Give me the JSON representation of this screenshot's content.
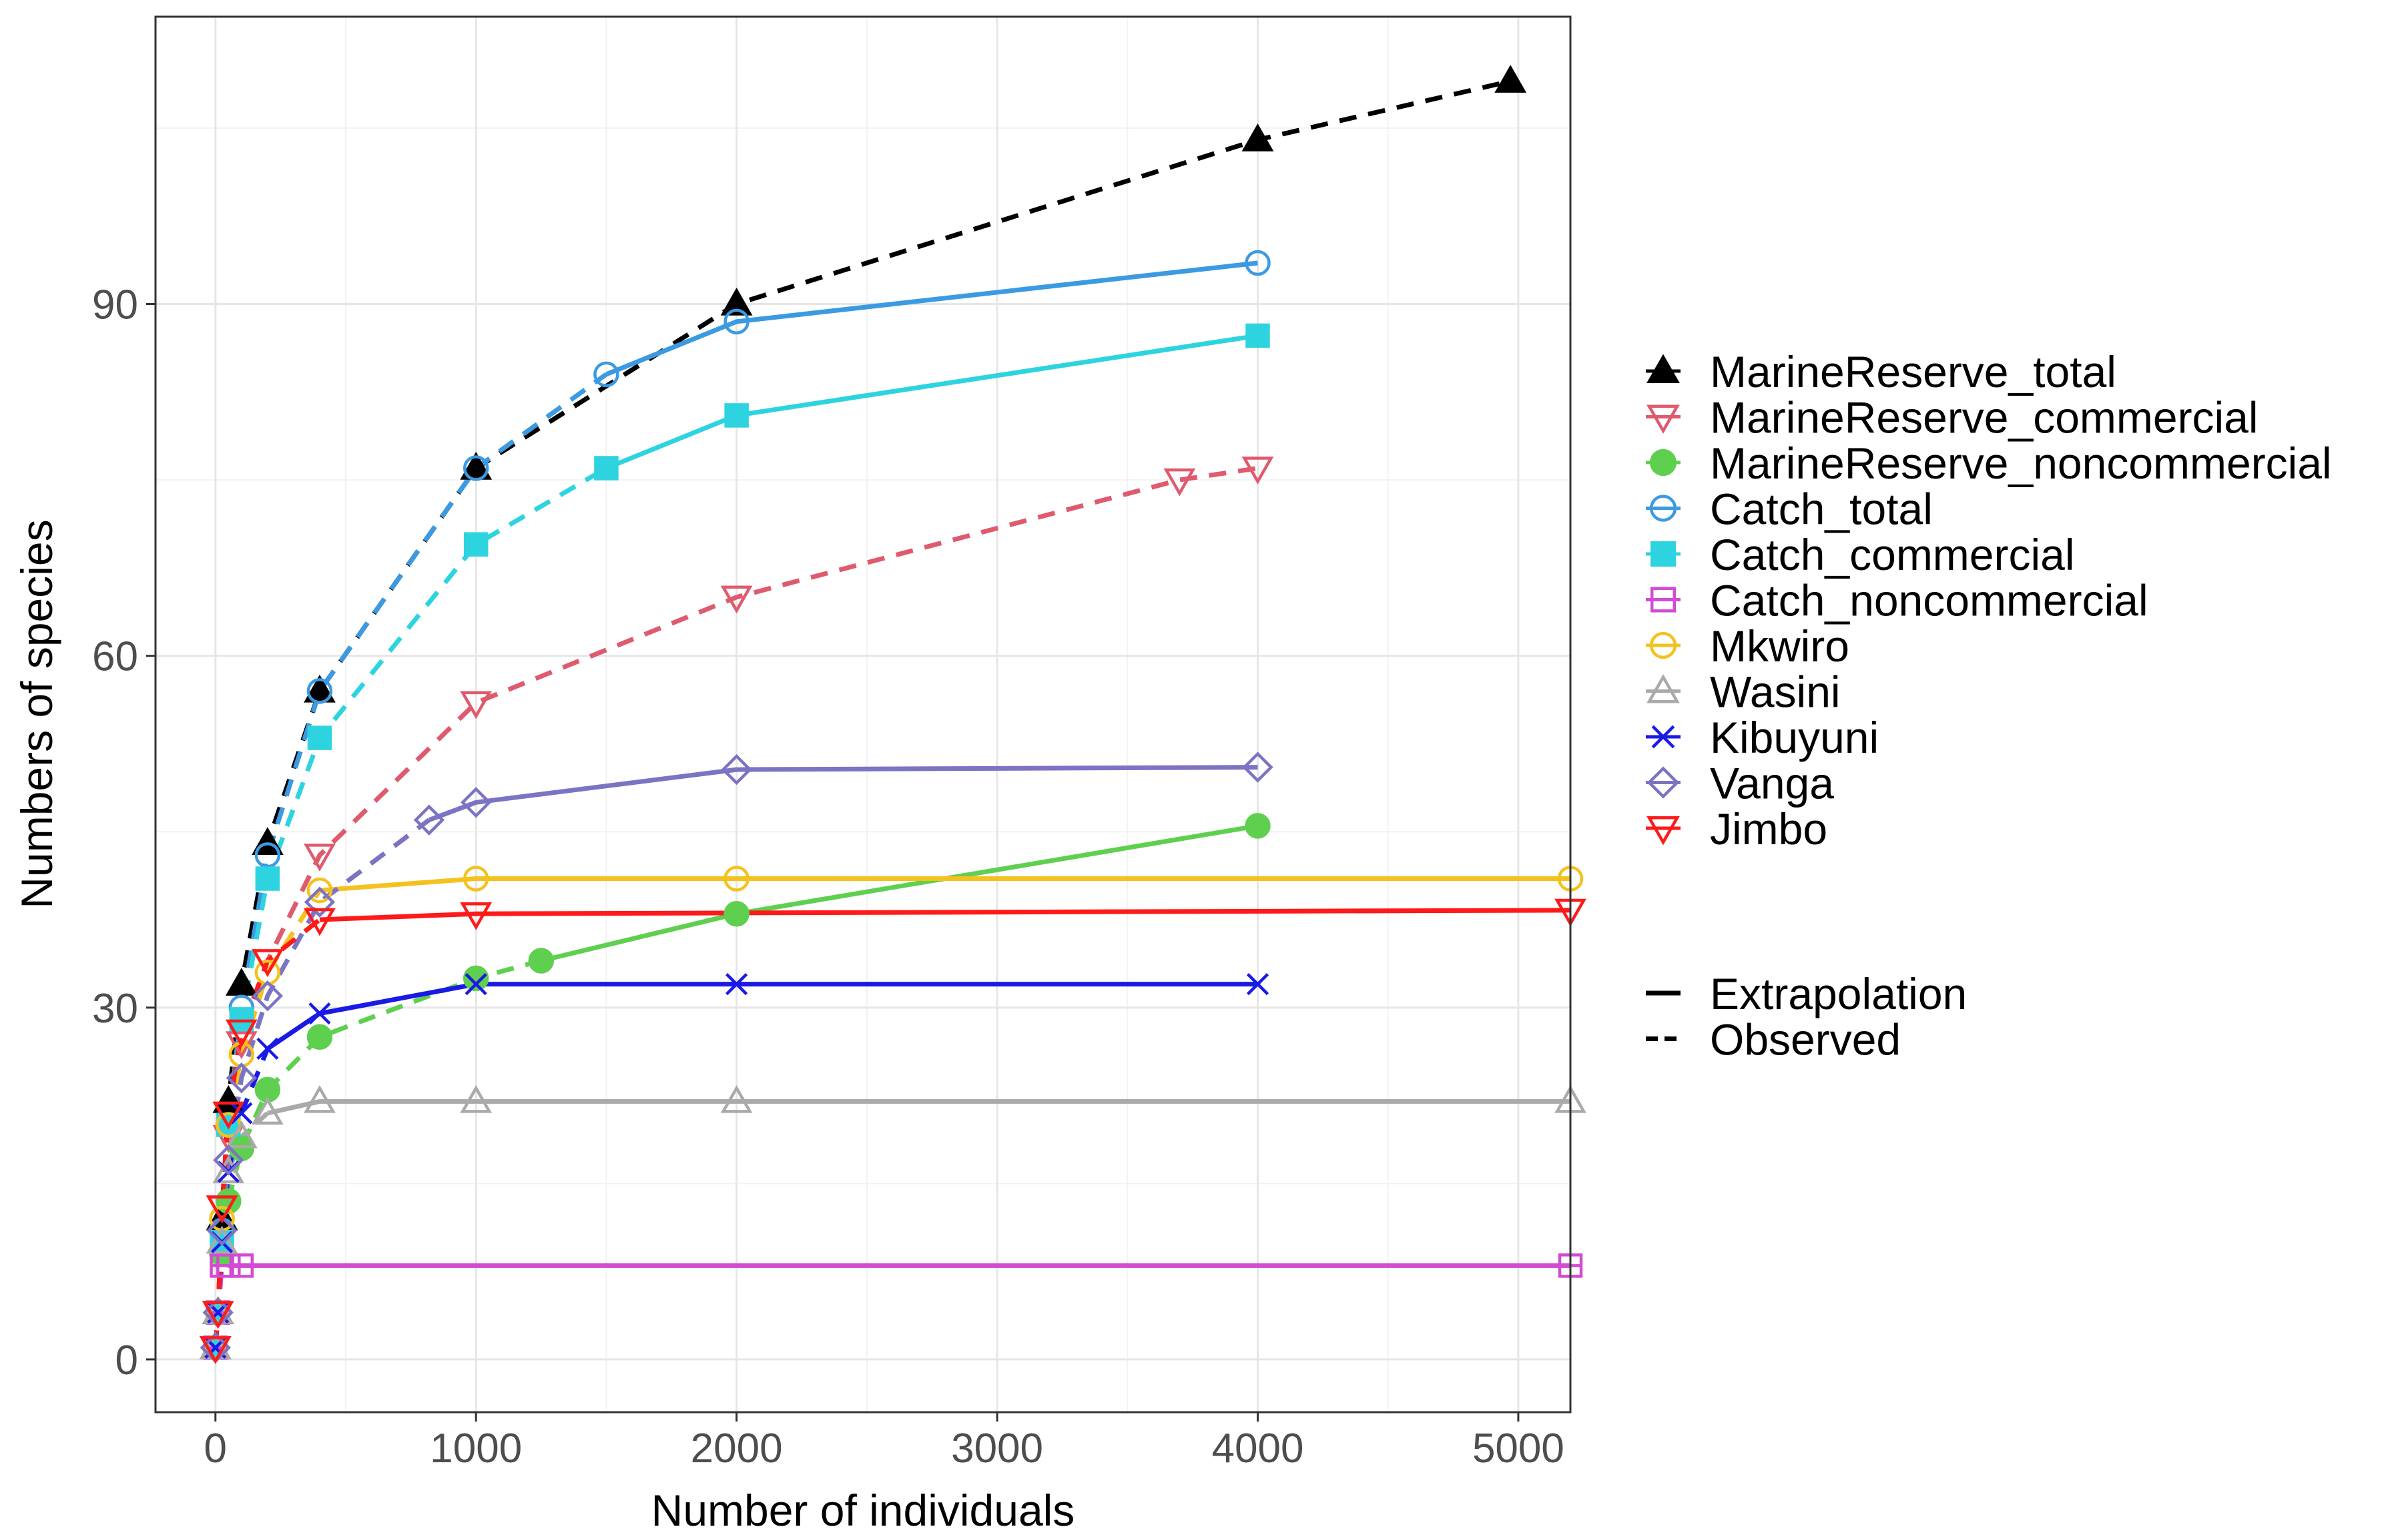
{
  "chart_data": {
    "type": "line",
    "title": "",
    "xlabel": "Number of individuals",
    "ylabel": "Numbers of species",
    "xlim": [
      -230,
      5200
    ],
    "ylim": [
      -4.5,
      114.5
    ],
    "xticks": [
      0,
      1000,
      2000,
      3000,
      4000,
      5000
    ],
    "yticks": [
      0,
      30,
      60,
      90
    ],
    "grid": true,
    "legend_position": "right",
    "linetype_legend": [
      {
        "label": "Extrapolation",
        "dash": "solid"
      },
      {
        "label": "Observed",
        "dash": "dashed"
      }
    ],
    "series": [
      {
        "name": "MarineReserve_total",
        "color": "#000000",
        "marker": "triangle-filled",
        "observed": [
          [
            0,
            1
          ],
          [
            10,
            4
          ],
          [
            25,
            12
          ],
          [
            50,
            22
          ],
          [
            100,
            32
          ],
          [
            200,
            44
          ],
          [
            400,
            57
          ],
          [
            1000,
            76
          ],
          [
            2000,
            90
          ],
          [
            4000,
            104
          ],
          [
            4970,
            109
          ]
        ],
        "extrapolation": []
      },
      {
        "name": "MarineReserve_commercial",
        "color": "#e05a6e",
        "marker": "triangle-down-open",
        "observed": [
          [
            0,
            1
          ],
          [
            10,
            4
          ],
          [
            25,
            13
          ],
          [
            50,
            19
          ],
          [
            100,
            27
          ],
          [
            200,
            34
          ],
          [
            400,
            43
          ],
          [
            1000,
            56
          ],
          [
            2000,
            65
          ],
          [
            3700,
            75
          ],
          [
            4000,
            76
          ]
        ],
        "extrapolation": []
      },
      {
        "name": "MarineReserve_noncommercial",
        "color": "#5fcf4f",
        "marker": "circle-filled",
        "observed": [
          [
            0,
            1
          ],
          [
            10,
            4
          ],
          [
            25,
            9
          ],
          [
            50,
            13.5
          ],
          [
            100,
            18
          ],
          [
            200,
            23
          ],
          [
            400,
            27.5
          ],
          [
            1000,
            32.5
          ],
          [
            1250,
            34
          ]
        ],
        "extrapolation": [
          [
            1250,
            34
          ],
          [
            2000,
            38
          ],
          [
            4000,
            45.5
          ]
        ]
      },
      {
        "name": "Catch_total",
        "color": "#3b9ae1",
        "marker": "circle-open",
        "observed": [
          [
            0,
            1
          ],
          [
            10,
            4
          ],
          [
            25,
            11
          ],
          [
            50,
            20
          ],
          [
            100,
            30
          ],
          [
            200,
            43
          ],
          [
            400,
            57
          ],
          [
            1000,
            76
          ],
          [
            1500,
            84
          ]
        ],
        "extrapolation": [
          [
            1500,
            84
          ],
          [
            2000,
            88.5
          ],
          [
            4000,
            93.5
          ]
        ]
      },
      {
        "name": "Catch_commercial",
        "color": "#2ed3e0",
        "marker": "square-filled",
        "observed": [
          [
            0,
            1
          ],
          [
            10,
            4
          ],
          [
            25,
            10
          ],
          [
            50,
            20
          ],
          [
            100,
            29
          ],
          [
            200,
            41
          ],
          [
            400,
            53
          ],
          [
            1000,
            69.5
          ],
          [
            1500,
            76
          ]
        ],
        "extrapolation": [
          [
            1500,
            76
          ],
          [
            2000,
            80.5
          ],
          [
            4000,
            87.3
          ]
        ]
      },
      {
        "name": "Catch_noncommercial",
        "color": "#d34ad3",
        "marker": "square-open",
        "observed": [
          [
            0,
            1
          ],
          [
            10,
            4
          ],
          [
            25,
            8
          ],
          [
            50,
            8
          ],
          [
            100,
            8
          ]
        ],
        "extrapolation": [
          [
            100,
            8
          ],
          [
            5200,
            8
          ]
        ]
      },
      {
        "name": "Mkwiro",
        "color": "#f4c21e",
        "marker": "circle-open",
        "observed": [
          [
            0,
            1
          ],
          [
            10,
            4
          ],
          [
            25,
            12
          ],
          [
            50,
            20
          ],
          [
            100,
            26
          ],
          [
            200,
            33
          ],
          [
            400,
            40
          ]
        ],
        "extrapolation": [
          [
            400,
            40
          ],
          [
            1000,
            41
          ],
          [
            2000,
            41
          ],
          [
            5200,
            41
          ]
        ]
      },
      {
        "name": "Wasini",
        "color": "#aaaaaa",
        "marker": "triangle-open",
        "observed": [
          [
            0,
            1
          ],
          [
            10,
            4
          ],
          [
            25,
            10
          ],
          [
            50,
            16
          ],
          [
            100,
            19
          ],
          [
            200,
            21
          ]
        ],
        "extrapolation": [
          [
            200,
            21
          ],
          [
            400,
            22
          ],
          [
            1000,
            22
          ],
          [
            2000,
            22
          ],
          [
            5200,
            22
          ]
        ]
      },
      {
        "name": "Kibuyuni",
        "color": "#1a1ae6",
        "marker": "cross",
        "observed": [
          [
            0,
            1
          ],
          [
            10,
            4
          ],
          [
            25,
            10
          ],
          [
            50,
            16
          ],
          [
            100,
            21
          ],
          [
            200,
            26.5
          ]
        ],
        "extrapolation": [
          [
            200,
            26.5
          ],
          [
            400,
            29.5
          ],
          [
            1000,
            32
          ],
          [
            2000,
            32
          ],
          [
            4000,
            32
          ]
        ]
      },
      {
        "name": "Vanga",
        "color": "#7b74c4",
        "marker": "diamond-open",
        "observed": [
          [
            0,
            1
          ],
          [
            10,
            4
          ],
          [
            25,
            11
          ],
          [
            50,
            17
          ],
          [
            100,
            24
          ],
          [
            200,
            31
          ],
          [
            400,
            39
          ],
          [
            820,
            46
          ]
        ],
        "extrapolation": [
          [
            820,
            46
          ],
          [
            1000,
            47.5
          ],
          [
            2000,
            50.3
          ],
          [
            4000,
            50.5
          ]
        ]
      },
      {
        "name": "Jimbo",
        "color": "#ff1a1a",
        "marker": "triangle-down-open",
        "observed": [
          [
            0,
            1
          ],
          [
            10,
            4
          ],
          [
            25,
            13
          ],
          [
            50,
            21
          ],
          [
            100,
            28
          ],
          [
            200,
            34
          ],
          [
            400,
            37.5
          ]
        ],
        "extrapolation": [
          [
            400,
            37.5
          ],
          [
            1000,
            38
          ],
          [
            5200,
            38.3
          ]
        ]
      }
    ]
  }
}
